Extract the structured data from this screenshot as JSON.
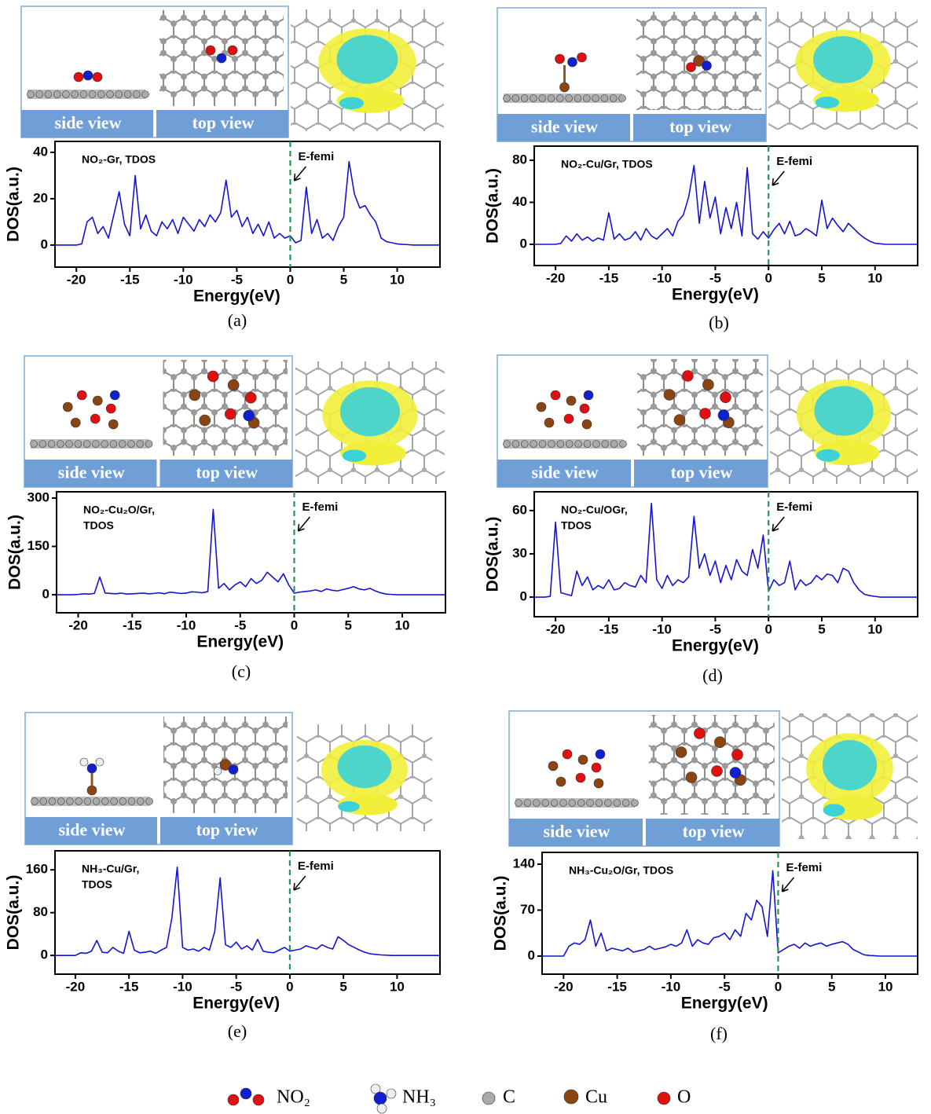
{
  "chart_data": [
    {
      "type": "line",
      "label": "(a)",
      "title": [
        "NO₂-Gr, TDOS"
      ],
      "views": [
        "side view",
        "top view"
      ],
      "annotation": "E-femi",
      "xlabel": "Energy(eV)",
      "ylabel": "DOS(a.u.)",
      "color": "#1414d2",
      "fermi_level": 0,
      "xlim": [
        -22,
        14
      ],
      "ylim": [
        -9.5,
        44.7
      ],
      "xticks": [
        -20,
        -15,
        -10,
        -5,
        0,
        5,
        10
      ],
      "yticks": [
        0,
        20,
        40
      ],
      "x": [
        -22,
        -21.5,
        -21,
        -20.5,
        -20,
        -19.5,
        -19,
        -18.5,
        -18,
        -17.5,
        -17,
        -16.5,
        -16,
        -15.5,
        -15,
        -14.5,
        -14,
        -13.5,
        -13,
        -12.5,
        -12,
        -11.5,
        -11,
        -10.5,
        -10,
        -9.5,
        -9,
        -8.5,
        -8,
        -7.5,
        -7,
        -6.5,
        -6,
        -5.5,
        -5,
        -4.5,
        -4,
        -3.5,
        -3,
        -2.5,
        -2,
        -1.5,
        -1,
        -0.5,
        0,
        0.5,
        1,
        1.5,
        2,
        2.5,
        3,
        3.5,
        4,
        4.5,
        5,
        5.5,
        6,
        6.5,
        7,
        7.5,
        8,
        8.5,
        9,
        9.5,
        10,
        10.5,
        11,
        11.5,
        12,
        12.5,
        13,
        13.5,
        14
      ],
      "values": [
        0,
        0,
        0,
        0,
        0,
        0.5,
        10,
        12,
        5,
        8,
        3,
        13,
        23,
        9,
        4,
        30,
        7,
        13,
        6,
        4,
        10,
        7,
        11,
        5,
        12,
        9,
        6,
        11,
        8,
        13,
        10,
        14,
        28,
        12,
        15,
        8,
        12,
        5,
        9,
        4,
        10,
        3,
        5,
        3,
        4,
        1,
        2,
        25,
        5,
        11,
        3,
        5,
        2,
        8,
        12,
        36,
        22,
        16,
        17,
        13,
        10,
        3,
        1.5,
        1,
        0.5,
        0.3,
        0.2,
        0,
        0,
        0,
        0,
        0,
        0
      ]
    },
    {
      "type": "line",
      "label": "(b)",
      "title": [
        "NO₂-Cu/Gr, TDOS"
      ],
      "views": [
        "side view",
        "top view"
      ],
      "annotation": "E-femi",
      "xlabel": "Energy(eV)",
      "ylabel": "DOS(a.u.)",
      "color": "#1414d2",
      "fermi_level": 0,
      "xlim": [
        -22,
        14
      ],
      "ylim": [
        -20.2,
        93.5
      ],
      "xticks": [
        -20,
        -15,
        -10,
        -5,
        0,
        5,
        10
      ],
      "yticks": [
        0,
        40,
        80
      ],
      "x": [
        -22,
        -21.5,
        -21,
        -20.5,
        -20,
        -19.5,
        -19,
        -18.5,
        -18,
        -17.5,
        -17,
        -16.5,
        -16,
        -15.5,
        -15,
        -14.5,
        -14,
        -13.5,
        -13,
        -12.5,
        -12,
        -11.5,
        -11,
        -10.5,
        -10,
        -9.5,
        -9,
        -8.5,
        -8,
        -7.5,
        -7,
        -6.5,
        -6,
        -5.5,
        -5,
        -4.5,
        -4,
        -3.5,
        -3,
        -2.5,
        -2,
        -1.5,
        -1,
        -0.5,
        0,
        0.5,
        1,
        1.5,
        2,
        2.5,
        3,
        3.5,
        4,
        4.5,
        5,
        5.5,
        6,
        6.5,
        7,
        7.5,
        8,
        8.5,
        9,
        9.5,
        10,
        10.5,
        11,
        11.5,
        12,
        12.5,
        13,
        13.5,
        14
      ],
      "values": [
        0,
        0,
        0,
        0,
        0,
        1,
        8,
        3,
        10,
        4,
        7,
        3,
        6,
        4,
        30,
        5,
        10,
        4,
        6,
        12,
        4,
        15,
        8,
        5,
        10,
        15,
        8,
        22,
        28,
        45,
        75,
        20,
        60,
        25,
        45,
        10,
        35,
        15,
        40,
        8,
        73,
        10,
        5,
        12,
        6,
        14,
        20,
        10,
        22,
        8,
        10,
        15,
        12,
        8,
        42,
        15,
        25,
        18,
        12,
        20,
        15,
        10,
        6,
        3,
        1,
        0.5,
        0,
        0,
        0,
        0,
        0,
        0,
        0
      ]
    },
    {
      "type": "line",
      "label": "(c)",
      "title": [
        "NO₂-Cu₂O/Gr,",
        "TDOS"
      ],
      "views": [
        "side view",
        "top view"
      ],
      "annotation": "E-femi",
      "xlabel": "Energy(eV)",
      "ylabel": "DOS(a.u.)",
      "color": "#1414d2",
      "fermi_level": 0,
      "xlim": [
        -22,
        14
      ],
      "ylim": [
        -56,
        319.5
      ],
      "xticks": [
        -20,
        -15,
        -10,
        -5,
        0,
        5,
        10
      ],
      "yticks": [
        0,
        150,
        300
      ],
      "x": [
        -22,
        -21.5,
        -21,
        -20.5,
        -20,
        -19.5,
        -19,
        -18.5,
        -18,
        -17.5,
        -17,
        -16.5,
        -16,
        -15.5,
        -15,
        -14.5,
        -14,
        -13.5,
        -13,
        -12.5,
        -12,
        -11.5,
        -11,
        -10.5,
        -10,
        -9.5,
        -9,
        -8.5,
        -8,
        -7.5,
        -7,
        -6.5,
        -6,
        -5.5,
        -5,
        -4.5,
        -4,
        -3.5,
        -3,
        -2.5,
        -2,
        -1.5,
        -1,
        -0.5,
        0,
        0.5,
        1,
        1.5,
        2,
        2.5,
        3,
        3.5,
        4,
        4.5,
        5,
        5.5,
        6,
        6.5,
        7,
        7.5,
        8,
        8.5,
        9,
        9.5,
        10,
        10.5,
        11,
        11.5,
        12,
        12.5,
        13,
        13.5,
        14
      ],
      "values": [
        0,
        0,
        0,
        0,
        1,
        3,
        2,
        4,
        55,
        5,
        4,
        3,
        5,
        2,
        3,
        4,
        5,
        3,
        4,
        6,
        3,
        8,
        6,
        4,
        5,
        9,
        8,
        6,
        10,
        265,
        20,
        35,
        15,
        30,
        40,
        25,
        50,
        35,
        45,
        70,
        55,
        40,
        65,
        30,
        5,
        8,
        10,
        12,
        15,
        10,
        18,
        14,
        12,
        16,
        20,
        25,
        18,
        15,
        20,
        12,
        6,
        2,
        1,
        0,
        0,
        0,
        0,
        0,
        0,
        0,
        0,
        0,
        0
      ]
    },
    {
      "type": "line",
      "label": "(d)",
      "title": [
        "NO₂-Cu/OGr,",
        "TDOS"
      ],
      "views": [
        "side view",
        "top view"
      ],
      "annotation": "E-femi",
      "xlabel": "Energy(eV)",
      "ylabel": "DOS(a.u.)",
      "color": "#1414d2",
      "fermi_level": 0,
      "xlim": [
        -22,
        14
      ],
      "ylim": [
        -13.6,
        73
      ],
      "xticks": [
        -20,
        -15,
        -10,
        -5,
        0,
        5,
        10
      ],
      "yticks": [
        0,
        30,
        60
      ],
      "x": [
        -22,
        -21.5,
        -21,
        -20.5,
        -20,
        -19.5,
        -19,
        -18.5,
        -18,
        -17.5,
        -17,
        -16.5,
        -16,
        -15.5,
        -15,
        -14.5,
        -14,
        -13.5,
        -13,
        -12.5,
        -12,
        -11.5,
        -11,
        -10.5,
        -10,
        -9.5,
        -9,
        -8.5,
        -8,
        -7.5,
        -7,
        -6.5,
        -6,
        -5.5,
        -5,
        -4.5,
        -4,
        -3.5,
        -3,
        -2.5,
        -2,
        -1.5,
        -1,
        -0.5,
        0,
        0.5,
        1,
        1.5,
        2,
        2.5,
        3,
        3.5,
        4,
        4.5,
        5,
        5.5,
        6,
        6.5,
        7,
        7.5,
        8,
        8.5,
        9,
        9.5,
        10,
        10.5,
        11,
        11.5,
        12,
        12.5,
        13,
        13.5,
        14
      ],
      "values": [
        0,
        0,
        0,
        0.5,
        52,
        3,
        2,
        1,
        18,
        8,
        14,
        5,
        8,
        6,
        12,
        5,
        6,
        10,
        8,
        7,
        15,
        10,
        65,
        12,
        6,
        15,
        8,
        12,
        10,
        14,
        56,
        20,
        30,
        15,
        25,
        10,
        22,
        12,
        26,
        18,
        15,
        33,
        20,
        43,
        4,
        12,
        8,
        10,
        25,
        5,
        12,
        8,
        10,
        15,
        12,
        16,
        15,
        10,
        20,
        18,
        10,
        5,
        2,
        1,
        0.5,
        0,
        0,
        0,
        0,
        0,
        0,
        0,
        0
      ]
    },
    {
      "type": "line",
      "label": "(e)",
      "title": [
        "NH₃-Cu/Gr,",
        "TDOS"
      ],
      "views": [
        "side view",
        "top view"
      ],
      "annotation": "E-femi",
      "xlabel": "Energy(eV)",
      "ylabel": "DOS(a.u.)",
      "color": "#1414d2",
      "fermi_level": 0,
      "xlim": [
        -21.9,
        14
      ],
      "ylim": [
        -35,
        195.6
      ],
      "xticks": [
        -20,
        -15,
        -10,
        -5,
        0,
        5,
        10
      ],
      "yticks": [
        0,
        80,
        160
      ],
      "x": [
        -22,
        -21.5,
        -21,
        -20.5,
        -20,
        -19.5,
        -19,
        -18.5,
        -18,
        -17.5,
        -17,
        -16.5,
        -16,
        -15.5,
        -15,
        -14.5,
        -14,
        -13.5,
        -13,
        -12.5,
        -12,
        -11.5,
        -11,
        -10.5,
        -10,
        -9.5,
        -9,
        -8.5,
        -8,
        -7.5,
        -7,
        -6.5,
        -6,
        -5.5,
        -5,
        -4.5,
        -4,
        -3.5,
        -3,
        -2.5,
        -2,
        -1.5,
        -1,
        -0.5,
        0,
        0.5,
        1,
        1.5,
        2,
        2.5,
        3,
        3.5,
        4,
        4.5,
        5,
        5.5,
        6,
        6.5,
        7,
        7.5,
        8,
        8.5,
        9,
        9.5,
        10,
        10.5,
        11,
        11.5,
        12,
        12.5,
        13,
        13.5,
        14
      ],
      "values": [
        0,
        0,
        0,
        0,
        0,
        5,
        4,
        8,
        28,
        6,
        5,
        15,
        8,
        4,
        45,
        10,
        5,
        6,
        8,
        4,
        10,
        15,
        70,
        165,
        15,
        10,
        12,
        8,
        15,
        10,
        45,
        145,
        20,
        15,
        25,
        12,
        18,
        10,
        30,
        8,
        6,
        5,
        10,
        15,
        8,
        10,
        12,
        18,
        15,
        12,
        20,
        15,
        12,
        35,
        28,
        20,
        15,
        10,
        6,
        3,
        2,
        1,
        0.5,
        0,
        0,
        0,
        0,
        0,
        0,
        0,
        0,
        0,
        0
      ]
    },
    {
      "type": "line",
      "label": "(f)",
      "title": [
        "NH₃-Cu₂O/Gr, TDOS"
      ],
      "views": [
        "side view",
        "top view"
      ],
      "annotation": "E-femi",
      "xlabel": "Energy(eV)",
      "ylabel": "DOS(a.u.)",
      "color": "#1414d2",
      "fermi_level": 0,
      "xlim": [
        -22,
        13
      ],
      "ylim": [
        -27.5,
        157.9
      ],
      "xticks": [
        -20,
        -15,
        -10,
        -5,
        0,
        5,
        10
      ],
      "yticks": [
        0,
        70,
        140
      ],
      "x": [
        -22,
        -21.5,
        -21,
        -20.5,
        -20,
        -19.5,
        -19,
        -18.5,
        -18,
        -17.5,
        -17,
        -16.5,
        -16,
        -15.5,
        -15,
        -14.5,
        -14,
        -13.5,
        -13,
        -12.5,
        -12,
        -11.5,
        -11,
        -10.5,
        -10,
        -9.5,
        -9,
        -8.5,
        -8,
        -7.5,
        -7,
        -6.5,
        -6,
        -5.5,
        -5,
        -4.5,
        -4,
        -3.5,
        -3,
        -2.5,
        -2,
        -1.5,
        -1,
        -0.5,
        0,
        0.5,
        1,
        1.5,
        2,
        2.5,
        3,
        3.5,
        4,
        4.5,
        5,
        5.5,
        6,
        6.5,
        7,
        7.5,
        8,
        8.5,
        9,
        9.5,
        10,
        10.5,
        11,
        11.5,
        12,
        12.5,
        13
      ],
      "values": [
        0,
        0,
        0,
        0,
        0,
        15,
        20,
        18,
        25,
        55,
        15,
        35,
        8,
        12,
        10,
        8,
        12,
        6,
        8,
        10,
        15,
        10,
        12,
        14,
        18,
        15,
        20,
        40,
        15,
        25,
        20,
        18,
        28,
        30,
        35,
        25,
        40,
        30,
        65,
        55,
        85,
        75,
        30,
        130,
        5,
        10,
        15,
        18,
        12,
        20,
        15,
        18,
        20,
        15,
        18,
        20,
        22,
        18,
        10,
        6,
        2,
        1,
        0.5,
        0,
        0,
        0,
        0,
        0,
        0,
        0,
        0
      ]
    }
  ],
  "legend": [
    "NO₂",
    "NH₃",
    "C",
    "Cu",
    "O"
  ]
}
